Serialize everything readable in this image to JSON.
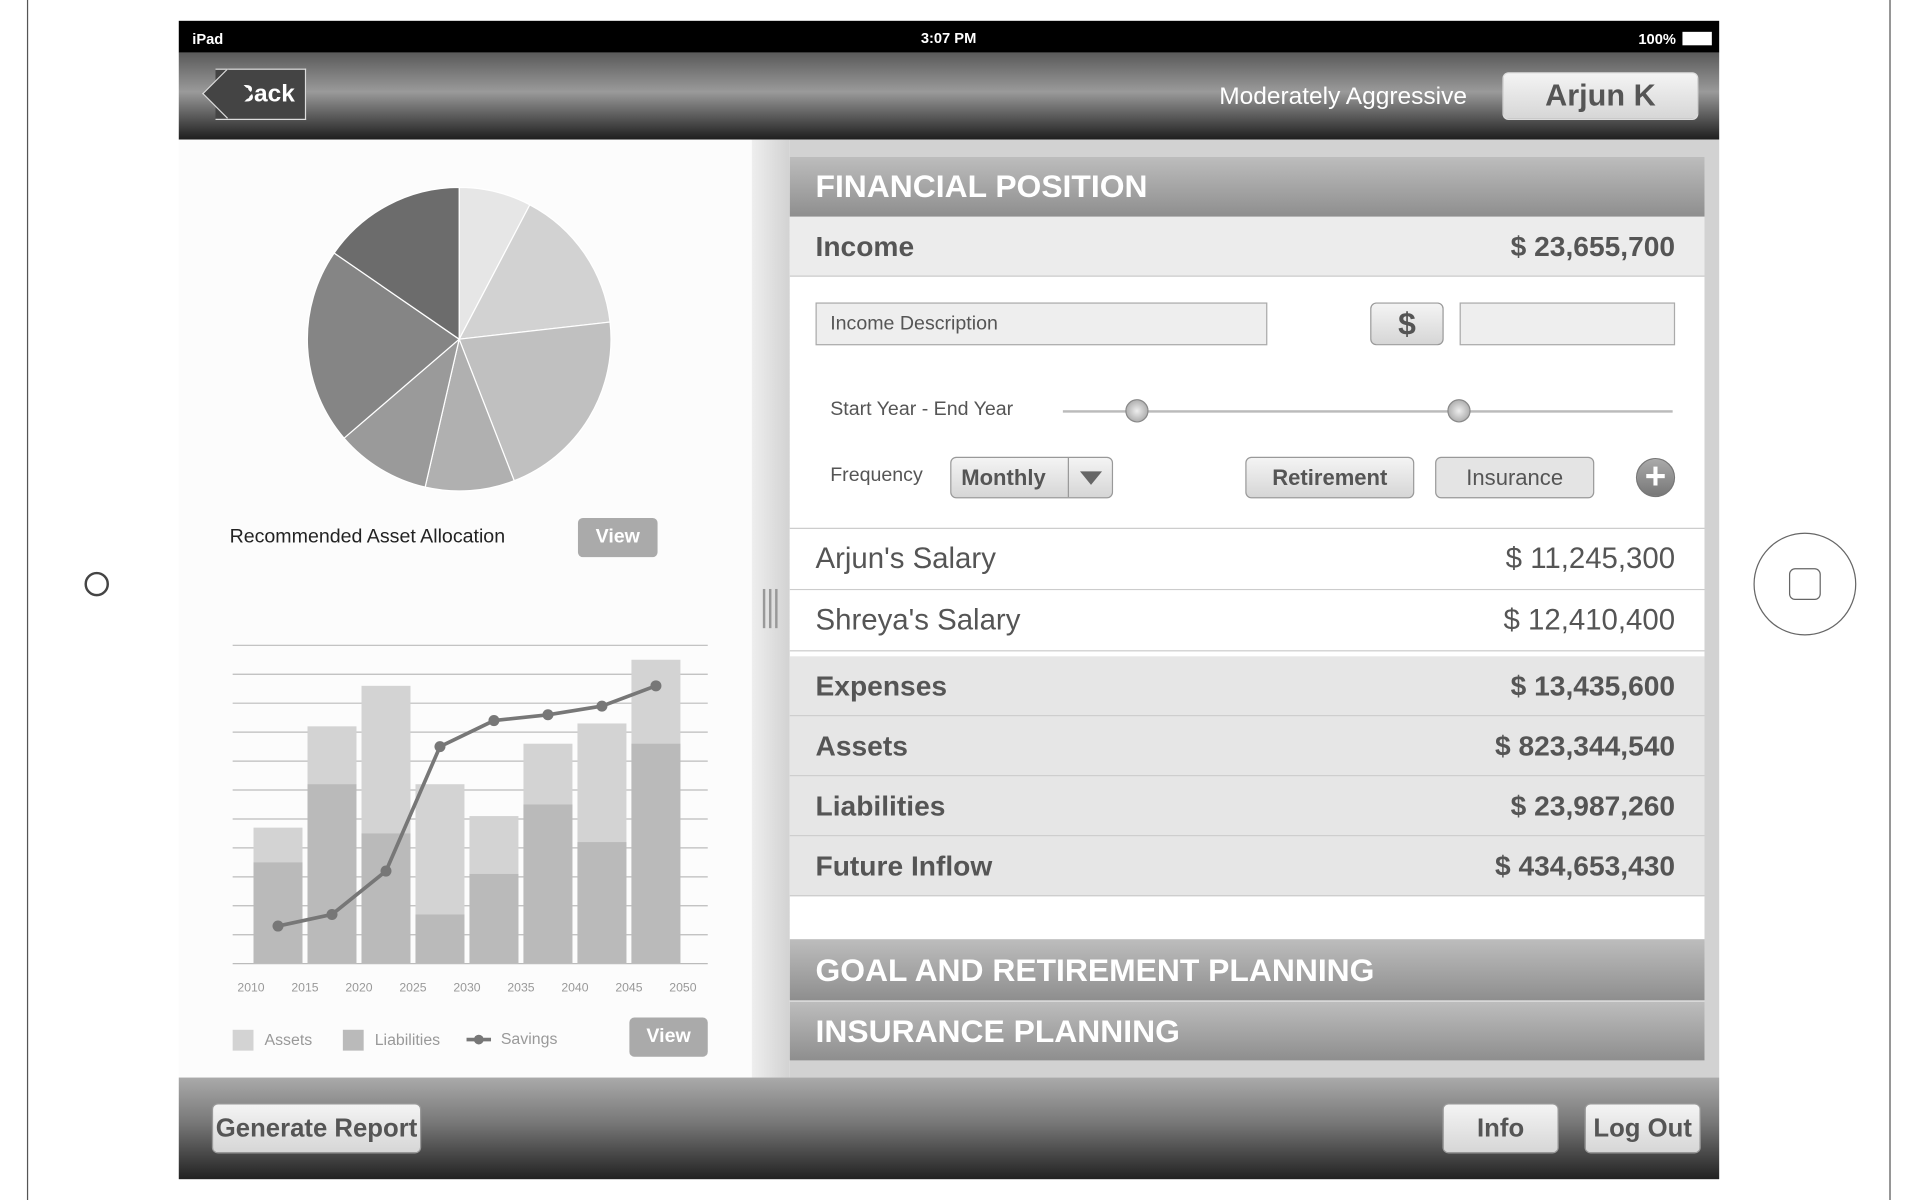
{
  "status_bar": {
    "device": "iPad",
    "time": "3:07 PM",
    "battery": "100%"
  },
  "nav": {
    "back": "Back",
    "risk_profile": "Moderately Aggressive",
    "user": "Arjun K"
  },
  "chart_data": [
    {
      "type": "pie",
      "title": "Recommended Asset Allocation",
      "values": [
        7.7,
        15.5,
        20.9,
        9.5,
        10.1,
        20.9,
        15.4
      ],
      "colors": [
        "#e6e6e6",
        "#d2d2d2",
        "#c0c0c0",
        "#b0b0b0",
        "#9a9a9a",
        "#858585",
        "#6c6c6c"
      ]
    },
    {
      "type": "bar",
      "x": [
        2012.5,
        2017.5,
        2022.5,
        2027.5,
        2032.5,
        2037.5,
        2042.5,
        2047.5
      ],
      "xlim": [
        2008.3,
        2052.3
      ],
      "xticks": [
        2010,
        2015,
        2020,
        2025,
        2030,
        2035,
        2040,
        2045,
        2050
      ],
      "ylim": [
        0,
        11
      ],
      "yticks": [
        0,
        1,
        2,
        3,
        4,
        5,
        6,
        7,
        8,
        9,
        10,
        11
      ],
      "grid": true,
      "series": [
        {
          "name": "Assets",
          "kind": "bar",
          "color": "#d3d3d3",
          "values": [
            4.7,
            8.2,
            9.6,
            6.2,
            5.1,
            7.6,
            8.3,
            10.5
          ]
        },
        {
          "name": "Liabilities",
          "kind": "bar",
          "color": "#bababa",
          "values": [
            3.5,
            6.2,
            4.5,
            1.7,
            3.1,
            5.5,
            4.2,
            7.6
          ]
        },
        {
          "name": "Savings",
          "kind": "line",
          "color": "#777777",
          "values": [
            1.3,
            1.7,
            3.2,
            7.5,
            8.4,
            8.6,
            8.9,
            9.6
          ]
        }
      ]
    }
  ],
  "pie_view_button": "View",
  "chart_view_button": "View",
  "financial_position": {
    "title": "FINANCIAL POSITION",
    "income": {
      "label": "Income",
      "value": "$ 23,655,700"
    },
    "form": {
      "description_placeholder": "Income Description",
      "currency_button": "$",
      "year_label": "Start Year - End Year",
      "frequency_label": "Frequency",
      "frequency": "Monthly",
      "retirement_button": "Retirement",
      "insurance_button": "Insurance"
    },
    "income_items": [
      {
        "label": "Arjun's Salary",
        "value": "$ 11,245,300"
      },
      {
        "label": "Shreya's Salary",
        "value": "$ 12,410,400"
      }
    ],
    "summary": [
      {
        "label": "Expenses",
        "value": "$ 13,435,600"
      },
      {
        "label": "Assets",
        "value": "$ 823,344,540"
      },
      {
        "label": "Liabilities",
        "value": "$ 23,987,260"
      },
      {
        "label": "Future Inflow",
        "value": "$ 434,653,430"
      }
    ]
  },
  "sections": [
    "GOAL AND RETIREMENT PLANNING",
    "INSURANCE PLANNING"
  ],
  "footer": {
    "generate": "Generate Report",
    "info": "Info",
    "logout": "Log Out"
  }
}
